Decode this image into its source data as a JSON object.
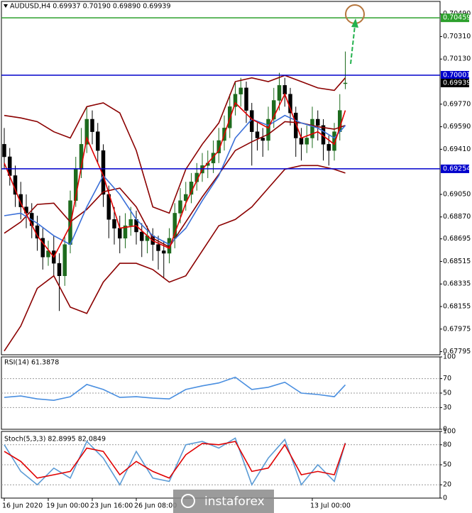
{
  "chart_data": [
    {
      "type": "candlestick",
      "title": "AUDUSD,H4  0.69937 0.70190 0.69890 0.69939",
      "open": [
        0.6945,
        0.6935,
        0.692,
        0.6905,
        0.6895,
        0.689,
        0.688,
        0.687,
        0.6855,
        0.686,
        0.685,
        0.684,
        0.6865,
        0.69,
        0.6925,
        0.6945,
        0.6965,
        0.6955,
        0.694,
        0.6905,
        0.6885,
        0.6878,
        0.687,
        0.688,
        0.6885,
        0.6875,
        0.6868,
        0.6872,
        0.6865,
        0.686,
        0.6858,
        0.687,
        0.689,
        0.69,
        0.6905,
        0.6915,
        0.6922,
        0.6928,
        0.693,
        0.6938,
        0.6948,
        0.6958,
        0.6975,
        0.6985,
        0.699,
        0.6972,
        0.6955,
        0.695,
        0.6948,
        0.6965,
        0.698,
        0.6992,
        0.6985,
        0.697,
        0.695,
        0.6945,
        0.695,
        0.6965,
        0.696,
        0.6945,
        0.694,
        0.6955,
        0.69937
      ],
      "high": [
        0.6958,
        0.6942,
        0.6928,
        0.6915,
        0.6905,
        0.6898,
        0.6888,
        0.6878,
        0.6868,
        0.6872,
        0.6858,
        0.6872,
        0.6908,
        0.6935,
        0.6958,
        0.6975,
        0.6972,
        0.6962,
        0.6945,
        0.6912,
        0.6895,
        0.6888,
        0.689,
        0.6895,
        0.6892,
        0.6882,
        0.688,
        0.6878,
        0.6872,
        0.6868,
        0.6878,
        0.6898,
        0.691,
        0.6915,
        0.6922,
        0.693,
        0.6938,
        0.694,
        0.6948,
        0.6958,
        0.6968,
        0.6985,
        0.6995,
        0.6998,
        0.6995,
        0.6978,
        0.6962,
        0.6958,
        0.6975,
        0.699,
        0.7002,
        0.6998,
        0.699,
        0.6975,
        0.6958,
        0.696,
        0.6975,
        0.6972,
        0.6965,
        0.6952,
        0.6962,
        0.6985,
        0.7019
      ],
      "low": [
        0.6925,
        0.6912,
        0.6895,
        0.6885,
        0.6878,
        0.687,
        0.686,
        0.6845,
        0.6848,
        0.684,
        0.6812,
        0.6832,
        0.6858,
        0.6895,
        0.6918,
        0.6938,
        0.6945,
        0.693,
        0.6895,
        0.687,
        0.6865,
        0.6858,
        0.6862,
        0.6872,
        0.6865,
        0.6855,
        0.6858,
        0.6852,
        0.6845,
        0.6838,
        0.685,
        0.6862,
        0.6882,
        0.6892,
        0.6898,
        0.6908,
        0.6915,
        0.6918,
        0.6922,
        0.693,
        0.694,
        0.695,
        0.6968,
        0.6975,
        0.6962,
        0.6928,
        0.694,
        0.6935,
        0.694,
        0.6958,
        0.6972,
        0.6975,
        0.696,
        0.6935,
        0.6932,
        0.6938,
        0.6942,
        0.6948,
        0.6932,
        0.6928,
        0.6932,
        0.6948,
        0.6989
      ],
      "close": [
        0.6935,
        0.692,
        0.6905,
        0.6895,
        0.689,
        0.688,
        0.687,
        0.6855,
        0.686,
        0.685,
        0.684,
        0.6865,
        0.69,
        0.6925,
        0.6945,
        0.6965,
        0.6955,
        0.694,
        0.6905,
        0.6885,
        0.6878,
        0.687,
        0.688,
        0.6885,
        0.6875,
        0.6868,
        0.6872,
        0.6865,
        0.686,
        0.6858,
        0.687,
        0.689,
        0.69,
        0.6905,
        0.6915,
        0.6922,
        0.6928,
        0.693,
        0.6938,
        0.6948,
        0.6958,
        0.6975,
        0.6985,
        0.699,
        0.6972,
        0.6955,
        0.695,
        0.6948,
        0.6965,
        0.698,
        0.6992,
        0.6985,
        0.697,
        0.695,
        0.6945,
        0.695,
        0.6965,
        0.696,
        0.6945,
        0.694,
        0.6955,
        0.6972,
        0.69939
      ],
      "up_color": "#1e6b1e",
      "down_color": "#000000",
      "ylim": [
        0.6777,
        0.7059
      ],
      "yticks": [
        {
          "value": 0.7049,
          "label": "0.70490"
        },
        {
          "value": 0.7031,
          "label": "0.70310"
        },
        {
          "value": 0.7013,
          "label": "0.70130"
        },
        {
          "value": 0.6977,
          "label": "0.69770"
        },
        {
          "value": 0.6959,
          "label": "0.69590"
        },
        {
          "value": 0.6941,
          "label": "0.69410"
        },
        {
          "value": 0.6905,
          "label": "0.69050"
        },
        {
          "value": 0.6887,
          "label": "0.68870"
        },
        0.68695,
        0.68515,
        0.68335,
        0.68155,
        0.67975,
        0.67795
      ],
      "xticks": [
        {
          "value": 0,
          "label": "16 Jun 2020"
        },
        {
          "value": 8,
          "label": "19 Jun 00:00"
        },
        {
          "value": 16,
          "label": "23 Jun 16:00"
        },
        {
          "value": 24,
          "label": "26 Jun 08:00"
        },
        {
          "value": 56,
          "label": "13 Jul 00:00"
        }
      ],
      "overlay_x": [
        0,
        3,
        6,
        9,
        12,
        15,
        18,
        21,
        24,
        27,
        30,
        33,
        36,
        39,
        42,
        45,
        48,
        51,
        54,
        57,
        60,
        62
      ],
      "overlays": [
        {
          "color": "#8b0000",
          "values": [
            0.6968,
            0.6966,
            0.6963,
            0.6955,
            0.695,
            0.6975,
            0.6978,
            0.697,
            0.694,
            0.6895,
            0.689,
            0.6925,
            0.6945,
            0.6962,
            0.6995,
            0.6998,
            0.6995,
            0.7,
            0.6995,
            0.699,
            0.6988,
            0.6998
          ]
        },
        {
          "color": "#8b0000",
          "values": [
            0.6874,
            0.6883,
            0.6897,
            0.6898,
            0.6883,
            0.6893,
            0.6907,
            0.691,
            0.6895,
            0.687,
            0.6863,
            0.6883,
            0.6903,
            0.6921,
            0.694,
            0.6947,
            0.6953,
            0.6963,
            0.6962,
            0.6959,
            0.6957,
            0.696
          ]
        },
        {
          "color": "#8b0000",
          "values": [
            0.678,
            0.68,
            0.683,
            0.684,
            0.6815,
            0.681,
            0.6835,
            0.685,
            0.685,
            0.6845,
            0.6835,
            0.684,
            0.686,
            0.688,
            0.6885,
            0.6895,
            0.691,
            0.6925,
            0.6928,
            0.6928,
            0.6925,
            0.6922
          ]
        },
        {
          "color": "#3a6fd8",
          "values": [
            0.6888,
            0.689,
            0.6882,
            0.6872,
            0.6865,
            0.6895,
            0.692,
            0.6905,
            0.6885,
            0.6872,
            0.6865,
            0.6878,
            0.69,
            0.692,
            0.695,
            0.6965,
            0.696,
            0.6968,
            0.6962,
            0.6958,
            0.695,
            0.696
          ]
        },
        {
          "color": "#e00000",
          "values": [
            0.693,
            0.6898,
            0.6872,
            0.6855,
            0.688,
            0.695,
            0.692,
            0.6878,
            0.688,
            0.6868,
            0.6862,
            0.6898,
            0.6925,
            0.694,
            0.6978,
            0.6965,
            0.6958,
            0.6985,
            0.695,
            0.6955,
            0.6945,
            0.6972
          ]
        }
      ],
      "levels": [
        {
          "value": 0.70459,
          "color": "#2ca02c"
        },
        {
          "value": 0.70001,
          "color": "#0000cc"
        },
        {
          "value": 0.69254,
          "color": "#0000cc"
        }
      ],
      "last_price": 0.69939,
      "watermark": "instaforex"
    },
    {
      "type": "line",
      "title": "RSI(14) 61.3878",
      "x": [
        0,
        3,
        6,
        9,
        12,
        15,
        18,
        21,
        24,
        27,
        30,
        33,
        36,
        39,
        42,
        45,
        48,
        51,
        54,
        57,
        60,
        62
      ],
      "series": [
        {
          "color": "#4a8fe0",
          "values": [
            44,
            46,
            42,
            40,
            45,
            62,
            55,
            44,
            45,
            43,
            42,
            55,
            60,
            64,
            72,
            55,
            58,
            65,
            50,
            48,
            45,
            61.3878
          ]
        }
      ],
      "ylim": [
        0,
        100
      ],
      "yticks": [
        100,
        70,
        50,
        30,
        0
      ]
    },
    {
      "type": "line",
      "title": "Stoch(5,3,3) 82.8995 82.0849",
      "x": [
        0,
        3,
        6,
        9,
        12,
        15,
        18,
        21,
        24,
        27,
        30,
        33,
        36,
        39,
        42,
        45,
        48,
        51,
        54,
        57,
        60,
        62
      ],
      "series": [
        {
          "color": "#5b9bd5",
          "values": [
            80,
            40,
            20,
            45,
            30,
            85,
            60,
            20,
            70,
            30,
            25,
            80,
            85,
            75,
            90,
            20,
            60,
            88,
            20,
            50,
            25,
            82.8995
          ]
        },
        {
          "color": "#e00000",
          "values": [
            70,
            55,
            30,
            35,
            40,
            75,
            70,
            35,
            55,
            40,
            30,
            65,
            82,
            80,
            85,
            40,
            45,
            80,
            35,
            40,
            35,
            82.0849
          ]
        }
      ],
      "ylim": [
        0,
        100
      ],
      "yticks": [
        100,
        80,
        50,
        20,
        0
      ]
    }
  ]
}
